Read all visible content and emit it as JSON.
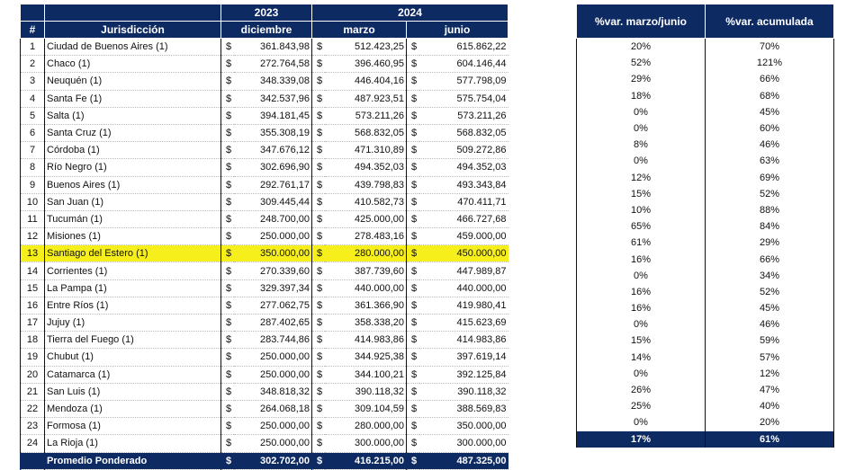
{
  "table_main": {
    "header": {
      "hash": "#",
      "jurisdiccion": "Jurisdicción",
      "year_2023": "2023",
      "year_2024": "2024",
      "diciembre": "diciembre",
      "marzo": "marzo",
      "junio": "junio"
    },
    "currency_symbol": "$",
    "rows": [
      {
        "n": "1",
        "name": "Ciudad de Buenos Aires (1)",
        "dic": "361.843,98",
        "mar": "512.423,25",
        "jun": "615.862,22"
      },
      {
        "n": "2",
        "name": "Chaco (1)",
        "dic": "272.764,58",
        "mar": "396.460,95",
        "jun": "604.146,44"
      },
      {
        "n": "3",
        "name": "Neuquén (1)",
        "dic": "348.339,08",
        "mar": "446.404,16",
        "jun": "577.798,09"
      },
      {
        "n": "4",
        "name": "Santa Fe (1)",
        "dic": "342.537,96",
        "mar": "487.923,51",
        "jun": "575.754,04"
      },
      {
        "n": "5",
        "name": "Salta (1)",
        "dic": "394.181,45",
        "mar": "573.211,26",
        "jun": "573.211,26"
      },
      {
        "n": "6",
        "name": "Santa Cruz (1)",
        "dic": "355.308,19",
        "mar": "568.832,05",
        "jun": "568.832,05"
      },
      {
        "n": "7",
        "name": "Córdoba (1)",
        "dic": "347.676,12",
        "mar": "471.310,89",
        "jun": "509.272,86"
      },
      {
        "n": "8",
        "name": "Río Negro (1)",
        "dic": "302.696,90",
        "mar": "494.352,03",
        "jun": "494.352,03"
      },
      {
        "n": "9",
        "name": "Buenos Aires (1)",
        "dic": "292.761,17",
        "mar": "439.798,83",
        "jun": "493.343,84"
      },
      {
        "n": "10",
        "name": "San Juan (1)",
        "dic": "309.445,44",
        "mar": "410.582,73",
        "jun": "470.411,71"
      },
      {
        "n": "11",
        "name": "Tucumán (1)",
        "dic": "248.700,00",
        "mar": "425.000,00",
        "jun": "466.727,68"
      },
      {
        "n": "12",
        "name": "Misiones (1)",
        "dic": "250.000,00",
        "mar": "278.483,16",
        "jun": "459.000,00"
      },
      {
        "n": "13",
        "name": "Santiago del Estero (1)",
        "dic": "350.000,00",
        "mar": "280.000,00",
        "jun": "450.000,00"
      },
      {
        "n": "14",
        "name": "Corrientes (1)",
        "dic": "270.339,60",
        "mar": "387.739,60",
        "jun": "447.989,87"
      },
      {
        "n": "15",
        "name": "La Pampa (1)",
        "dic": "329.397,34",
        "mar": "440.000,00",
        "jun": "440.000,00"
      },
      {
        "n": "16",
        "name": "Entre Ríos (1)",
        "dic": "277.062,75",
        "mar": "361.366,90",
        "jun": "419.980,41"
      },
      {
        "n": "17",
        "name": "Jujuy (1)",
        "dic": "287.402,65",
        "mar": "358.338,20",
        "jun": "415.623,69"
      },
      {
        "n": "18",
        "name": "Tierra del Fuego (1)",
        "dic": "283.744,86",
        "mar": "414.983,86",
        "jun": "414.983,86"
      },
      {
        "n": "19",
        "name": "Chubut (1)",
        "dic": "250.000,00",
        "mar": "344.925,38",
        "jun": "397.619,14"
      },
      {
        "n": "20",
        "name": "Catamarca (1)",
        "dic": "250.000,00",
        "mar": "344.100,21",
        "jun": "392.125,84"
      },
      {
        "n": "21",
        "name": "San Luis (1)",
        "dic": "348.818,32",
        "mar": "390.118,32",
        "jun": "390.118,32"
      },
      {
        "n": "22",
        "name": "Mendoza (1)",
        "dic": "264.068,18",
        "mar": "309.104,59",
        "jun": "388.569,83"
      },
      {
        "n": "23",
        "name": "Formosa (1)",
        "dic": "250.000,00",
        "mar": "280.000,00",
        "jun": "350.000,00"
      },
      {
        "n": "24",
        "name": "La Rioja (1)",
        "dic": "250.000,00",
        "mar": "300.000,00",
        "jun": "300.000,00"
      }
    ],
    "highlight_row": "13",
    "footer": {
      "label": "Promedio Ponderado",
      "dic": "302.702,00",
      "mar": "416.215,00",
      "jun": "487.325,00"
    }
  },
  "table_pct": {
    "header": {
      "var_marzo_junio": "%var. marzo/junio",
      "var_acumulada": "%var. acumulada"
    },
    "rows": [
      {
        "mj": "20%",
        "ac": "70%"
      },
      {
        "mj": "52%",
        "ac": "121%"
      },
      {
        "mj": "29%",
        "ac": "66%"
      },
      {
        "mj": "18%",
        "ac": "68%"
      },
      {
        "mj": "0%",
        "ac": "45%"
      },
      {
        "mj": "0%",
        "ac": "60%"
      },
      {
        "mj": "8%",
        "ac": "46%"
      },
      {
        "mj": "0%",
        "ac": "63%"
      },
      {
        "mj": "12%",
        "ac": "69%"
      },
      {
        "mj": "15%",
        "ac": "52%"
      },
      {
        "mj": "10%",
        "ac": "88%"
      },
      {
        "mj": "65%",
        "ac": "84%"
      },
      {
        "mj": "61%",
        "ac": "29%"
      },
      {
        "mj": "16%",
        "ac": "66%"
      },
      {
        "mj": "0%",
        "ac": "34%"
      },
      {
        "mj": "16%",
        "ac": "52%"
      },
      {
        "mj": "16%",
        "ac": "45%"
      },
      {
        "mj": "0%",
        "ac": "46%"
      },
      {
        "mj": "15%",
        "ac": "59%"
      },
      {
        "mj": "14%",
        "ac": "57%"
      },
      {
        "mj": "0%",
        "ac": "12%"
      },
      {
        "mj": "26%",
        "ac": "47%"
      },
      {
        "mj": "25%",
        "ac": "40%"
      },
      {
        "mj": "0%",
        "ac": "20%"
      }
    ],
    "footer": {
      "mj": "17%",
      "ac": "61%"
    }
  },
  "colors": {
    "header_bg": "#0e2a63",
    "highlight": "#f6ef1c"
  }
}
